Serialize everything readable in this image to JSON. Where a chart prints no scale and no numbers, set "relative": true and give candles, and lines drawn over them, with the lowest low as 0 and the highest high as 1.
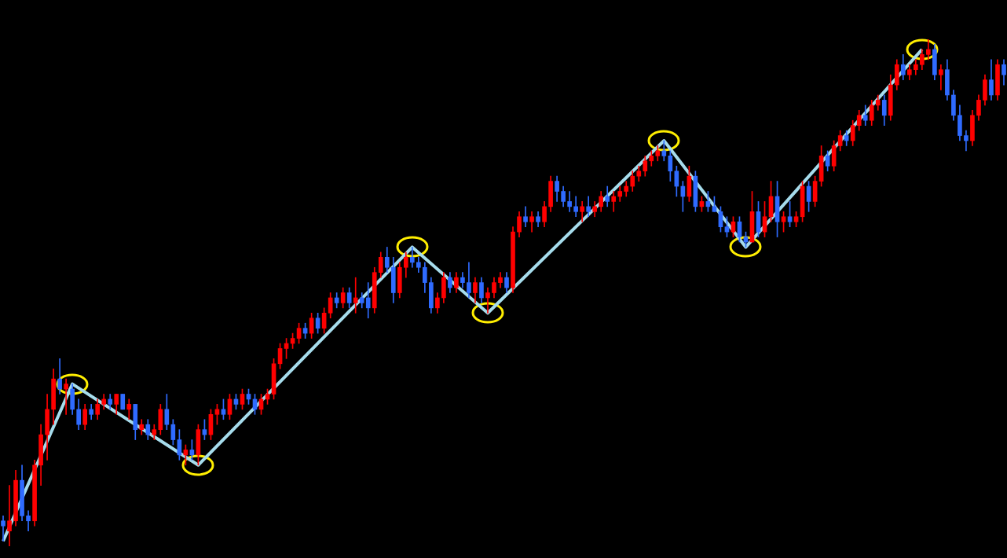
{
  "chart_data": {
    "type": "candlestick",
    "relative": true,
    "categories": [
      null,
      null,
      null,
      null,
      null,
      null,
      null,
      null,
      null,
      null,
      null,
      null,
      null,
      null,
      null,
      null,
      null,
      null,
      null,
      null,
      null,
      null,
      null,
      null,
      null,
      null,
      null,
      null,
      null,
      null,
      null,
      null,
      null,
      null,
      null,
      null,
      null,
      null,
      null,
      null,
      null,
      null,
      null,
      null,
      null,
      null,
      null,
      null,
      null,
      null,
      null,
      null,
      null,
      null,
      null,
      null,
      null,
      null,
      null,
      null,
      null,
      null,
      null,
      null,
      null,
      null,
      null,
      null,
      null,
      null,
      null,
      null,
      null,
      null,
      null,
      null,
      null,
      null,
      null,
      null,
      null,
      null,
      null,
      null,
      null,
      null,
      null,
      null,
      null,
      null,
      null,
      null,
      null,
      null,
      null,
      null,
      null,
      null,
      null,
      null,
      null,
      null,
      null,
      null,
      null,
      null,
      null,
      null,
      null,
      null,
      null,
      null,
      null,
      null,
      null,
      null,
      null,
      null,
      null,
      null,
      null,
      null,
      null,
      null,
      null,
      null,
      null,
      null,
      null,
      null,
      null,
      null,
      null,
      null,
      null,
      null,
      null,
      null,
      null,
      null,
      null,
      null,
      null,
      null,
      null,
      null,
      null,
      null,
      null,
      null,
      null,
      null,
      null,
      null,
      null,
      null,
      null,
      null,
      null,
      null
    ],
    "ohlc": [
      [
        0.05,
        0.06,
        0.01,
        0.04
      ],
      [
        0.03,
        0.12,
        0.0,
        0.05
      ],
      [
        0.05,
        0.15,
        0.04,
        0.13
      ],
      [
        0.13,
        0.16,
        0.05,
        0.06
      ],
      [
        0.06,
        0.07,
        0.03,
        0.05
      ],
      [
        0.05,
        0.17,
        0.04,
        0.16
      ],
      [
        0.16,
        0.24,
        0.12,
        0.22
      ],
      [
        0.22,
        0.3,
        0.17,
        0.27
      ],
      [
        0.27,
        0.35,
        0.24,
        0.33
      ],
      [
        0.33,
        0.37,
        0.3,
        0.31
      ],
      [
        0.31,
        0.33,
        0.26,
        0.32
      ],
      [
        0.31,
        0.32,
        0.26,
        0.27
      ],
      [
        0.27,
        0.29,
        0.23,
        0.24
      ],
      [
        0.24,
        0.28,
        0.23,
        0.27
      ],
      [
        0.27,
        0.28,
        0.25,
        0.26
      ],
      [
        0.26,
        0.29,
        0.25,
        0.28
      ],
      [
        0.28,
        0.3,
        0.27,
        0.29
      ],
      [
        0.29,
        0.3,
        0.27,
        0.28
      ],
      [
        0.28,
        0.3,
        0.26,
        0.3
      ],
      [
        0.3,
        0.3,
        0.27,
        0.27
      ],
      [
        0.27,
        0.29,
        0.25,
        0.28
      ],
      [
        0.28,
        0.28,
        0.21,
        0.23
      ],
      [
        0.23,
        0.25,
        0.22,
        0.24
      ],
      [
        0.24,
        0.25,
        0.21,
        0.22
      ],
      [
        0.22,
        0.24,
        0.21,
        0.23
      ],
      [
        0.23,
        0.28,
        0.22,
        0.27
      ],
      [
        0.27,
        0.3,
        0.23,
        0.24
      ],
      [
        0.24,
        0.25,
        0.2,
        0.21
      ],
      [
        0.21,
        0.23,
        0.17,
        0.18
      ],
      [
        0.18,
        0.2,
        0.16,
        0.19
      ],
      [
        0.19,
        0.21,
        0.17,
        0.18
      ],
      [
        0.18,
        0.24,
        0.16,
        0.23
      ],
      [
        0.23,
        0.25,
        0.21,
        0.22
      ],
      [
        0.22,
        0.27,
        0.21,
        0.26
      ],
      [
        0.26,
        0.28,
        0.24,
        0.27
      ],
      [
        0.27,
        0.29,
        0.25,
        0.26
      ],
      [
        0.26,
        0.3,
        0.25,
        0.29
      ],
      [
        0.29,
        0.3,
        0.27,
        0.28
      ],
      [
        0.28,
        0.31,
        0.27,
        0.3
      ],
      [
        0.3,
        0.31,
        0.28,
        0.29
      ],
      [
        0.29,
        0.3,
        0.26,
        0.27
      ],
      [
        0.27,
        0.3,
        0.26,
        0.29
      ],
      [
        0.29,
        0.31,
        0.28,
        0.3
      ],
      [
        0.3,
        0.37,
        0.29,
        0.36
      ],
      [
        0.36,
        0.4,
        0.35,
        0.39
      ],
      [
        0.39,
        0.41,
        0.37,
        0.4
      ],
      [
        0.4,
        0.42,
        0.39,
        0.41
      ],
      [
        0.41,
        0.44,
        0.4,
        0.43
      ],
      [
        0.43,
        0.44,
        0.41,
        0.42
      ],
      [
        0.42,
        0.46,
        0.41,
        0.45
      ],
      [
        0.45,
        0.46,
        0.42,
        0.43
      ],
      [
        0.43,
        0.47,
        0.42,
        0.46
      ],
      [
        0.46,
        0.5,
        0.45,
        0.49
      ],
      [
        0.49,
        0.5,
        0.47,
        0.48
      ],
      [
        0.48,
        0.51,
        0.47,
        0.5
      ],
      [
        0.5,
        0.51,
        0.47,
        0.48
      ],
      [
        0.48,
        0.53,
        0.46,
        0.49
      ],
      [
        0.49,
        0.5,
        0.47,
        0.48
      ],
      [
        0.49,
        0.52,
        0.45,
        0.47
      ],
      [
        0.47,
        0.55,
        0.46,
        0.54
      ],
      [
        0.54,
        0.58,
        0.53,
        0.57
      ],
      [
        0.57,
        0.59,
        0.54,
        0.55
      ],
      [
        0.55,
        0.57,
        0.48,
        0.5
      ],
      [
        0.5,
        0.56,
        0.49,
        0.55
      ],
      [
        0.55,
        0.58,
        0.53,
        0.57
      ],
      [
        0.57,
        0.59,
        0.55,
        0.56
      ],
      [
        0.56,
        0.57,
        0.54,
        0.55
      ],
      [
        0.55,
        0.56,
        0.5,
        0.52
      ],
      [
        0.52,
        0.53,
        0.46,
        0.47
      ],
      [
        0.47,
        0.5,
        0.46,
        0.49
      ],
      [
        0.49,
        0.54,
        0.48,
        0.53
      ],
      [
        0.53,
        0.54,
        0.5,
        0.51
      ],
      [
        0.51,
        0.54,
        0.5,
        0.53
      ],
      [
        0.53,
        0.54,
        0.51,
        0.52
      ],
      [
        0.52,
        0.56,
        0.49,
        0.5
      ],
      [
        0.5,
        0.53,
        0.48,
        0.52
      ],
      [
        0.52,
        0.53,
        0.48,
        0.49
      ],
      [
        0.49,
        0.51,
        0.46,
        0.5
      ],
      [
        0.5,
        0.53,
        0.49,
        0.52
      ],
      [
        0.52,
        0.54,
        0.51,
        0.53
      ],
      [
        0.53,
        0.54,
        0.5,
        0.51
      ],
      [
        0.51,
        0.63,
        0.5,
        0.62
      ],
      [
        0.62,
        0.66,
        0.61,
        0.65
      ],
      [
        0.65,
        0.67,
        0.63,
        0.64
      ],
      [
        0.64,
        0.66,
        0.62,
        0.65
      ],
      [
        0.65,
        0.66,
        0.63,
        0.64
      ],
      [
        0.64,
        0.68,
        0.63,
        0.67
      ],
      [
        0.67,
        0.73,
        0.66,
        0.72
      ],
      [
        0.72,
        0.73,
        0.68,
        0.7
      ],
      [
        0.7,
        0.71,
        0.67,
        0.68
      ],
      [
        0.68,
        0.7,
        0.66,
        0.67
      ],
      [
        0.67,
        0.69,
        0.65,
        0.66
      ],
      [
        0.66,
        0.68,
        0.64,
        0.67
      ],
      [
        0.67,
        0.69,
        0.65,
        0.66
      ],
      [
        0.66,
        0.68,
        0.65,
        0.67
      ],
      [
        0.67,
        0.7,
        0.66,
        0.69
      ],
      [
        0.69,
        0.71,
        0.67,
        0.68
      ],
      [
        0.68,
        0.7,
        0.66,
        0.69
      ],
      [
        0.69,
        0.71,
        0.68,
        0.7
      ],
      [
        0.7,
        0.72,
        0.69,
        0.71
      ],
      [
        0.71,
        0.74,
        0.7,
        0.73
      ],
      [
        0.73,
        0.75,
        0.72,
        0.74
      ],
      [
        0.74,
        0.77,
        0.73,
        0.76
      ],
      [
        0.76,
        0.78,
        0.75,
        0.77
      ],
      [
        0.77,
        0.79,
        0.76,
        0.78
      ],
      [
        0.78,
        0.8,
        0.76,
        0.77
      ],
      [
        0.77,
        0.78,
        0.72,
        0.74
      ],
      [
        0.74,
        0.75,
        0.69,
        0.71
      ],
      [
        0.71,
        0.72,
        0.66,
        0.69
      ],
      [
        0.69,
        0.75,
        0.68,
        0.73
      ],
      [
        0.73,
        0.74,
        0.66,
        0.67
      ],
      [
        0.67,
        0.69,
        0.66,
        0.68
      ],
      [
        0.68,
        0.7,
        0.66,
        0.67
      ],
      [
        0.67,
        0.69,
        0.66,
        0.66
      ],
      [
        0.66,
        0.67,
        0.62,
        0.63
      ],
      [
        0.63,
        0.65,
        0.61,
        0.62
      ],
      [
        0.62,
        0.65,
        0.61,
        0.64
      ],
      [
        0.64,
        0.65,
        0.6,
        0.61
      ],
      [
        0.61,
        0.62,
        0.59,
        0.6
      ],
      [
        0.6,
        0.7,
        0.6,
        0.66
      ],
      [
        0.66,
        0.68,
        0.61,
        0.62
      ],
      [
        0.62,
        0.68,
        0.61,
        0.65
      ],
      [
        0.65,
        0.72,
        0.64,
        0.69
      ],
      [
        0.69,
        0.72,
        0.61,
        0.64
      ],
      [
        0.64,
        0.66,
        0.62,
        0.65
      ],
      [
        0.65,
        0.68,
        0.63,
        0.64
      ],
      [
        0.64,
        0.66,
        0.63,
        0.65
      ],
      [
        0.65,
        0.72,
        0.64,
        0.71
      ],
      [
        0.71,
        0.72,
        0.66,
        0.68
      ],
      [
        0.68,
        0.73,
        0.67,
        0.72
      ],
      [
        0.72,
        0.79,
        0.71,
        0.77
      ],
      [
        0.77,
        0.78,
        0.74,
        0.75
      ],
      [
        0.75,
        0.8,
        0.74,
        0.79
      ],
      [
        0.79,
        0.82,
        0.78,
        0.81
      ],
      [
        0.81,
        0.82,
        0.79,
        0.8
      ],
      [
        0.8,
        0.84,
        0.79,
        0.83
      ],
      [
        0.83,
        0.86,
        0.82,
        0.85
      ],
      [
        0.85,
        0.87,
        0.83,
        0.84
      ],
      [
        0.84,
        0.88,
        0.83,
        0.87
      ],
      [
        0.87,
        0.89,
        0.86,
        0.88
      ],
      [
        0.88,
        0.89,
        0.83,
        0.85
      ],
      [
        0.85,
        0.93,
        0.84,
        0.91
      ],
      [
        0.91,
        0.96,
        0.9,
        0.95
      ],
      [
        0.95,
        0.97,
        0.92,
        0.93
      ],
      [
        0.93,
        0.95,
        0.92,
        0.94
      ],
      [
        0.94,
        0.96,
        0.93,
        0.95
      ],
      [
        0.95,
        0.98,
        0.94,
        0.97
      ],
      [
        0.97,
        1.0,
        0.96,
        0.98
      ],
      [
        0.98,
        0.99,
        0.92,
        0.93
      ],
      [
        0.93,
        0.95,
        0.9,
        0.94
      ],
      [
        0.94,
        0.96,
        0.88,
        0.89
      ],
      [
        0.89,
        0.9,
        0.84,
        0.85
      ],
      [
        0.85,
        0.87,
        0.8,
        0.81
      ],
      [
        0.81,
        0.82,
        0.78,
        0.8
      ],
      [
        0.8,
        0.86,
        0.79,
        0.85
      ],
      [
        0.85,
        0.89,
        0.84,
        0.88
      ],
      [
        0.88,
        0.93,
        0.87,
        0.92
      ],
      [
        0.92,
        0.96,
        0.88,
        0.89
      ],
      [
        0.89,
        0.96,
        0.88,
        0.95
      ],
      [
        0.95,
        0.96,
        0.91,
        0.93
      ]
    ],
    "colors": [
      "#2f6bff",
      "#ff0000",
      "#ff0000",
      "#2f6bff",
      "#2f6bff",
      "#ff0000",
      "#ff0000",
      "#ff0000",
      "#ff0000",
      "#2f6bff",
      "#ff0000",
      "#2f6bff",
      "#2f6bff",
      "#ff0000",
      "#2f6bff",
      "#ff0000",
      "#ff0000",
      "#2f6bff",
      "#ff0000",
      "#2f6bff",
      "#ff0000",
      "#2f6bff",
      "#ff0000",
      "#2f6bff",
      "#ff0000",
      "#ff0000",
      "#2f6bff",
      "#2f6bff",
      "#2f6bff",
      "#ff0000",
      "#2f6bff",
      "#ff0000",
      "#2f6bff",
      "#ff0000",
      "#ff0000",
      "#2f6bff",
      "#ff0000",
      "#2f6bff",
      "#ff0000",
      "#2f6bff",
      "#2f6bff",
      "#ff0000",
      "#ff0000",
      "#ff0000",
      "#ff0000",
      "#ff0000",
      "#ff0000",
      "#ff0000",
      "#2f6bff",
      "#ff0000",
      "#2f6bff",
      "#ff0000",
      "#ff0000",
      "#2f6bff",
      "#ff0000",
      "#2f6bff",
      "#ff0000",
      "#2f6bff",
      "#2f6bff",
      "#ff0000",
      "#ff0000",
      "#2f6bff",
      "#2f6bff",
      "#ff0000",
      "#ff0000",
      "#2f6bff",
      "#2f6bff",
      "#2f6bff",
      "#2f6bff",
      "#ff0000",
      "#ff0000",
      "#2f6bff",
      "#ff0000",
      "#2f6bff",
      "#2f6bff",
      "#ff0000",
      "#2f6bff",
      "#ff0000",
      "#ff0000",
      "#ff0000",
      "#2f6bff",
      "#ff0000",
      "#ff0000",
      "#2f6bff",
      "#ff0000",
      "#2f6bff",
      "#ff0000",
      "#ff0000",
      "#2f6bff",
      "#2f6bff",
      "#2f6bff",
      "#2f6bff",
      "#ff0000",
      "#2f6bff",
      "#ff0000",
      "#ff0000",
      "#2f6bff",
      "#ff0000",
      "#ff0000",
      "#ff0000",
      "#ff0000",
      "#ff0000",
      "#ff0000",
      "#ff0000",
      "#ff0000",
      "#2f6bff",
      "#2f6bff",
      "#2f6bff",
      "#2f6bff",
      "#ff0000",
      "#2f6bff",
      "#ff0000",
      "#2f6bff",
      "#2f6bff",
      "#2f6bff",
      "#2f6bff",
      "#ff0000",
      "#2f6bff",
      "#2f6bff",
      "#ff0000",
      "#2f6bff",
      "#ff0000",
      "#ff0000",
      "#2f6bff",
      "#ff0000",
      "#2f6bff",
      "#ff0000",
      "#ff0000",
      "#2f6bff",
      "#ff0000",
      "#ff0000",
      "#2f6bff",
      "#ff0000",
      "#ff0000",
      "#2f6bff",
      "#ff0000",
      "#ff0000",
      "#2f6bff",
      "#ff0000",
      "#ff0000",
      "#2f6bff",
      "#ff0000",
      "#ff0000",
      "#2f6bff",
      "#ff0000",
      "#ff0000",
      "#ff0000",
      "#ff0000",
      "#2f6bff",
      "#ff0000",
      "#2f6bff",
      "#2f6bff",
      "#2f6bff",
      "#2f6bff",
      "#ff0000",
      "#ff0000",
      "#ff0000",
      "#2f6bff",
      "#ff0000",
      "#2f6bff"
    ],
    "series": [
      {
        "type": "line",
        "color": "#a6dcec",
        "marker": "circle",
        "values": [
          0.01,
          null,
          null,
          null,
          null,
          null,
          null,
          null,
          null,
          null,
          null,
          0.32,
          null,
          null,
          null,
          null,
          null,
          null,
          null,
          null,
          null,
          null,
          null,
          null,
          null,
          null,
          null,
          null,
          null,
          null,
          null,
          0.16,
          null,
          null,
          null,
          null,
          null,
          null,
          null,
          null,
          null,
          null,
          null,
          null,
          null,
          null,
          null,
          null,
          null,
          null,
          null,
          null,
          null,
          null,
          null,
          null,
          null,
          null,
          null,
          null,
          null,
          null,
          null,
          null,
          null,
          0.59,
          null,
          null,
          null,
          null,
          null,
          null,
          null,
          null,
          null,
          null,
          null,
          0.46,
          null,
          null,
          null,
          null,
          null,
          null,
          null,
          null,
          null,
          null,
          null,
          null,
          null,
          null,
          null,
          null,
          null,
          null,
          null,
          null,
          null,
          null,
          null,
          null,
          null,
          null,
          null,
          0.8,
          null,
          null,
          null,
          null,
          null,
          null,
          null,
          null,
          null,
          null,
          null,
          null,
          0.59,
          null,
          null,
          null,
          null,
          null,
          null,
          null,
          null,
          null,
          null,
          null,
          null,
          null,
          null,
          null,
          null,
          null,
          null,
          null,
          null,
          null,
          null,
          null,
          null,
          null,
          null,
          null,
          0.98,
          null,
          null,
          null,
          null,
          null,
          null,
          null,
          null,
          null,
          null,
          null,
          null,
          null
        ]
      }
    ]
  }
}
